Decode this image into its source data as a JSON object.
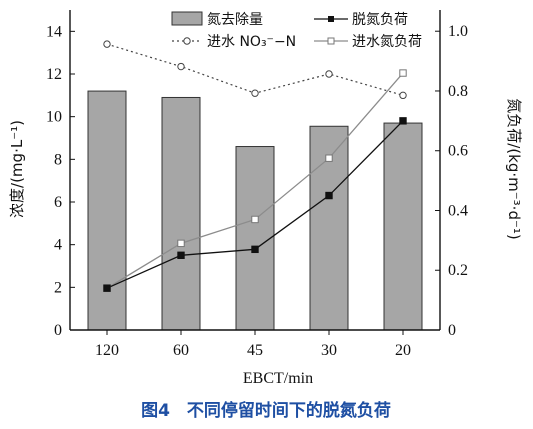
{
  "chart_data": {
    "type": "bar",
    "caption": "图4　不同停留时间下的脱氮负荷",
    "xlabel": "EBCT/min",
    "ylabel_left": "浓度/(mg·L⁻¹)",
    "ylabel_right": "氮负荷/(kg·m⁻³·d⁻¹)",
    "categories": [
      "120",
      "60",
      "45",
      "30",
      "20"
    ],
    "ylim_left": [
      0,
      15
    ],
    "ylim_right": [
      0,
      1.071
    ],
    "yticks_left": [
      0,
      2,
      4,
      6,
      8,
      10,
      12,
      14
    ],
    "yticks_right": [
      "0",
      "0.2",
      "0.4",
      "0.6",
      "0.8",
      "1.0"
    ],
    "grid": false,
    "legend_position": "top",
    "series": [
      {
        "name": "氮去除量",
        "kind": "bar",
        "axis": "left",
        "values": [
          11.2,
          10.9,
          8.6,
          9.55,
          9.7
        ],
        "color": "#a6a6a6"
      },
      {
        "name": "进水 NO₃⁻−N",
        "kind": "line-dotted-circle",
        "axis": "left",
        "values": [
          13.4,
          12.35,
          11.1,
          12.0,
          11.0
        ],
        "color": "#444444"
      },
      {
        "name": "脱氮负荷",
        "kind": "line-square-filled",
        "axis": "right",
        "values": [
          0.14,
          0.25,
          0.27,
          0.45,
          0.7
        ],
        "color": "#111111"
      },
      {
        "name": "进水氮负荷",
        "kind": "line-square-open",
        "axis": "right",
        "values": [
          0.14,
          0.29,
          0.37,
          0.575,
          0.86
        ],
        "color": "#8c8c8c"
      }
    ]
  }
}
